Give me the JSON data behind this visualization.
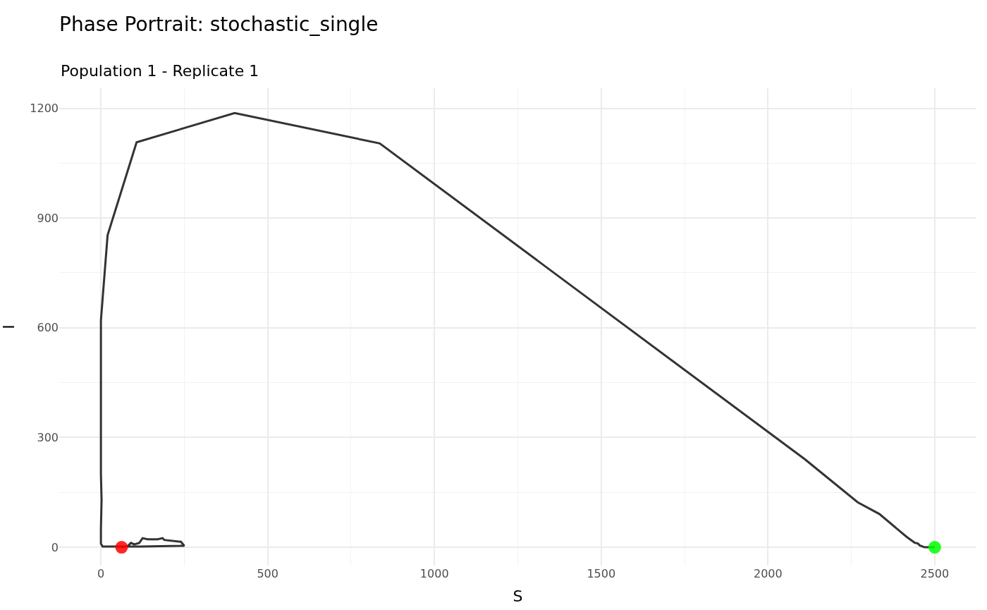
{
  "chart_data": {
    "type": "line",
    "title": "Phase Portrait: stochastic_single",
    "subtitle": "Population 1 - Replicate 1",
    "xlabel": "S",
    "ylabel": "I",
    "xlim": [
      -125,
      2625
    ],
    "ylim": [
      -50,
      1255
    ],
    "xticks": [
      0,
      {
        "value": 250,
        "label": null
      },
      500,
      {
        "value": 750,
        "label": null
      },
      1000,
      {
        "value": 1250,
        "label": null
      },
      1500,
      {
        "value": 1750,
        "label": null
      },
      2000,
      {
        "value": 2250,
        "label": null
      },
      2500
    ],
    "yticks": [
      0,
      {
        "value": 150,
        "label": null
      },
      300,
      {
        "value": 450,
        "label": null
      },
      600,
      {
        "value": 750,
        "label": null
      },
      900,
      {
        "value": 1050,
        "label": null
      },
      1200
    ],
    "grid": true,
    "series": [
      {
        "color": "#333333",
        "marker": "none",
        "x": [
          2500,
          2470,
          2455,
          2450,
          2439,
          2415,
          2334,
          2269,
          2110,
          836,
          401,
          107,
          20,
          0,
          0,
          2,
          0,
          0,
          5,
          120,
          250,
          240,
          190,
          185,
          170,
          140,
          125,
          115,
          100,
          90,
          80,
          62
        ],
        "values": [
          0,
          0,
          5,
          10,
          13,
          29,
          91,
          123,
          241,
          1104,
          1187,
          1107,
          853,
          620,
          200,
          130,
          50,
          10,
          2,
          2,
          4,
          15,
          20,
          25,
          22,
          22,
          25,
          12,
          8,
          12,
          3,
          0
        ]
      },
      {
        "type": "scatter",
        "color": "#00ff00",
        "marker": "circle",
        "x": [
          2500
        ],
        "values": [
          0
        ]
      },
      {
        "type": "scatter",
        "color": "#ff0000",
        "marker": "circle",
        "x": [
          62
        ],
        "values": [
          0
        ]
      }
    ]
  }
}
